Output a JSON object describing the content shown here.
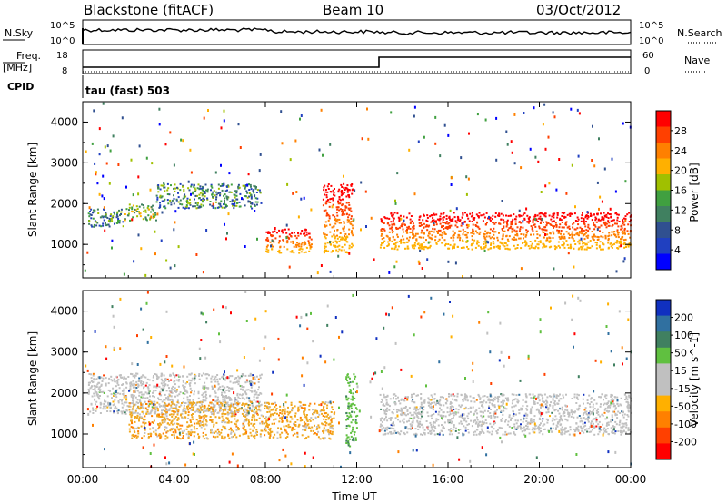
{
  "header": {
    "title_left": "Blackstone (fitACF)",
    "title_center": "Beam 10",
    "title_right": "03/Oct/2012"
  },
  "summary_panels": {
    "nsky_label": "N.Sky",
    "nsky_ticks": [
      "10^5",
      "10^0"
    ],
    "nsearch_label": "N.Search",
    "freq_label_line1": "Freq.",
    "freq_label_line2": "[MHz]",
    "freq_ticks": [
      "18",
      "8"
    ],
    "nave_label": "Nave",
    "nave_ticks": [
      "60",
      "0"
    ],
    "cpid_label": "CPID",
    "cpid_text": "tau (fast) 503"
  },
  "chart_data": [
    {
      "type": "heatmap",
      "name": "power-panel",
      "ylabel": "Slant Range [km]",
      "xlabel": "",
      "x_ticks": [
        "00:00",
        "04:00",
        "08:00",
        "12:00",
        "16:00",
        "20:00",
        "00:00"
      ],
      "y_ticks": [
        "1000",
        "2000",
        "3000",
        "4000"
      ],
      "xlim_hours": [
        0,
        24
      ],
      "ylim_km": [
        180,
        4500
      ],
      "colorbar": {
        "label": "Power [dB]",
        "ticks": [
          "28",
          "24",
          "20",
          "16",
          "12",
          "8",
          "4"
        ],
        "colors": [
          "#ff0000",
          "#ff4000",
          "#ff8000",
          "#ffb000",
          "#a0c000",
          "#40a040",
          "#408060",
          "#305090",
          "#2040c0",
          "#0000ff"
        ]
      },
      "bands": [
        {
          "x": [
            0.2,
            1.8
          ],
          "range_km": [
            1450,
            1900
          ],
          "level": "low-mid"
        },
        {
          "x": [
            1.8,
            3.2
          ],
          "range_km": [
            1600,
            2000
          ],
          "level": "mid"
        },
        {
          "x": [
            3.2,
            7.8
          ],
          "range_km": [
            1900,
            2500
          ],
          "level": "low"
        },
        {
          "x": [
            8.0,
            10.0
          ],
          "range_km": [
            800,
            1400
          ],
          "level": "high"
        },
        {
          "x": [
            10.5,
            11.8
          ],
          "range_km": [
            800,
            2500
          ],
          "level": "high"
        },
        {
          "x": [
            13.0,
            24.0
          ],
          "range_km": [
            900,
            1800
          ],
          "level": "high"
        }
      ]
    },
    {
      "type": "heatmap",
      "name": "velocity-panel",
      "ylabel": "Slant Range [km]",
      "xlabel": "Time UT",
      "x_ticks": [
        "00:00",
        "04:00",
        "08:00",
        "12:00",
        "16:00",
        "20:00",
        "00:00"
      ],
      "y_ticks": [
        "1000",
        "2000",
        "3000",
        "4000"
      ],
      "xlim_hours": [
        0,
        24
      ],
      "ylim_km": [
        180,
        4500
      ],
      "colorbar": {
        "label": "Velocity [m s^-1]",
        "ticks": [
          "200",
          "100",
          "50",
          "15",
          "-15",
          "-50",
          "-100",
          "-200"
        ],
        "colors": [
          "#1030c0",
          "#3070a0",
          "#408060",
          "#60c040",
          "#c0c0c0",
          "#c0c0c0",
          "#ffb000",
          "#ff8000",
          "#ff4000",
          "#ff0000"
        ]
      },
      "bands": [
        {
          "x": [
            0.2,
            7.8
          ],
          "range_km": [
            1500,
            2500
          ],
          "level": "ground"
        },
        {
          "x": [
            2.0,
            11.0
          ],
          "range_km": [
            900,
            1800
          ],
          "level": "negative"
        },
        {
          "x": [
            11.5,
            12.0
          ],
          "range_km": [
            700,
            2500
          ],
          "level": "positive"
        },
        {
          "x": [
            13.0,
            24.0
          ],
          "range_km": [
            1000,
            2000
          ],
          "level": "ground"
        }
      ]
    }
  ]
}
